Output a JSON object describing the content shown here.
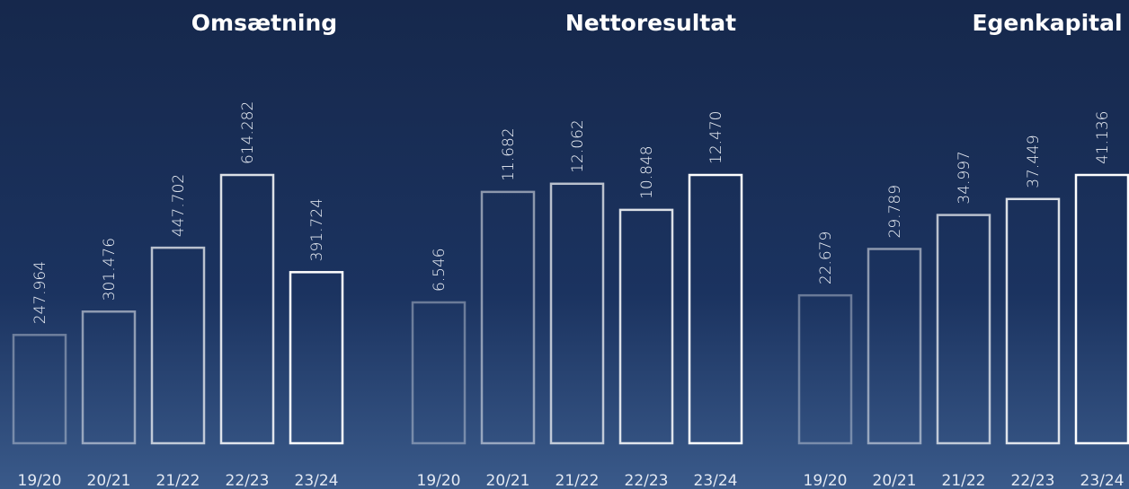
{
  "chart_data": [
    {
      "type": "bar",
      "title": "Omsætning",
      "color": "#ffffff",
      "categories": [
        "19/20",
        "20/21",
        "21/22",
        "22/23",
        "23/24"
      ],
      "values": [
        247964,
        301476,
        447702,
        614282,
        391724
      ],
      "value_labels": [
        "247.964",
        "301.476",
        "447.702",
        "614.282",
        "391.724"
      ]
    },
    {
      "type": "bar",
      "title": "Nettoresultat",
      "color": "#ffffff",
      "categories": [
        "19/20",
        "20/21",
        "21/22",
        "22/23",
        "23/24"
      ],
      "values": [
        6546,
        11682,
        12062,
        10848,
        12470
      ],
      "value_labels": [
        "6.546",
        "11.682",
        "12.062",
        "10.848",
        "12.470"
      ]
    },
    {
      "type": "bar",
      "title": "Egenkapital",
      "color": "#ffffff",
      "categories": [
        "19/20",
        "20/21",
        "21/22",
        "22/23",
        "23/24"
      ],
      "values": [
        22679,
        29789,
        34997,
        37449,
        41136
      ],
      "value_labels": [
        "22.679",
        "29.789",
        "34.997",
        "37.449",
        "41.136"
      ]
    }
  ]
}
